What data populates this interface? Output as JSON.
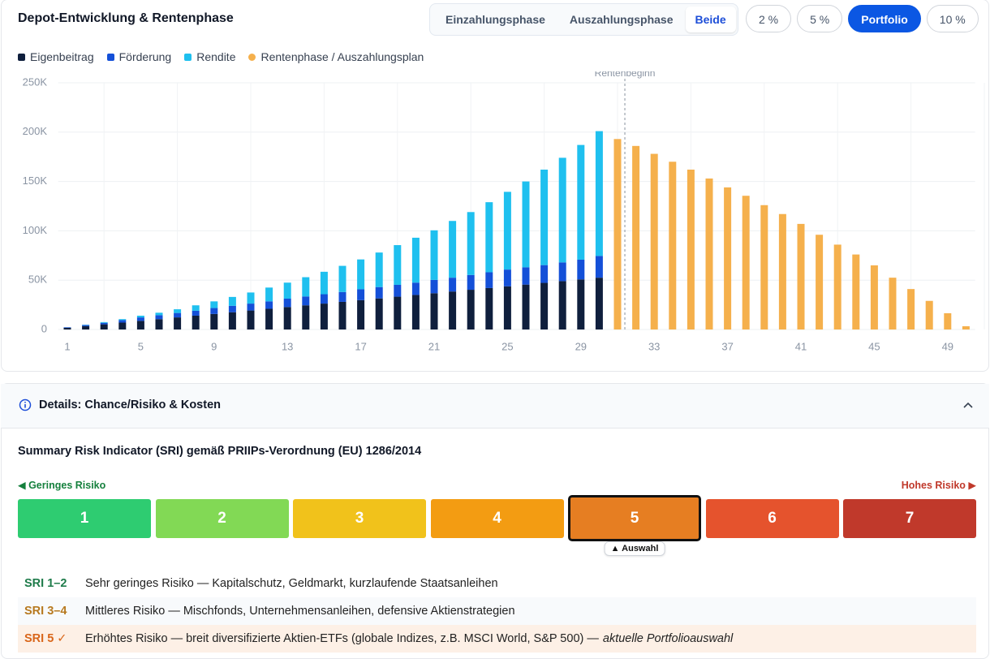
{
  "header": {
    "title": "Depot-Entwicklung & Rentenphase",
    "phases": [
      "Einzahlungsphase",
      "Auszahlungsphase",
      "Beide"
    ],
    "active_phase": 2,
    "rates": [
      "2 %",
      "5 %",
      "Portfolio",
      "10 %"
    ],
    "active_rate": 2
  },
  "chart_data": {
    "type": "bar",
    "stacked": true,
    "x": [
      1,
      2,
      3,
      4,
      5,
      6,
      7,
      8,
      9,
      10,
      11,
      12,
      13,
      14,
      15,
      16,
      17,
      18,
      19,
      20,
      21,
      22,
      23,
      24,
      25,
      26,
      27,
      28,
      29,
      30,
      31,
      32,
      33,
      34,
      35,
      36,
      37,
      38,
      39,
      40,
      41,
      42,
      43,
      44,
      45,
      46,
      47,
      48,
      49,
      50
    ],
    "xlim": [
      0.5,
      50.5
    ],
    "xticks": [
      1,
      5,
      9,
      13,
      17,
      21,
      25,
      29,
      33,
      37,
      41,
      45,
      49
    ],
    "ylim": [
      0,
      250000
    ],
    "yticks": [
      0,
      {
        "value": 50000,
        "label": "50K"
      },
      {
        "value": 100000,
        "label": "100K"
      },
      {
        "value": 150000,
        "label": "150K"
      },
      {
        "value": 200000,
        "label": "200K"
      },
      {
        "value": 250000,
        "label": "250K"
      }
    ],
    "grid": true,
    "annotation": {
      "text": "Rentenbeginn",
      "x": 31.4
    },
    "series": [
      {
        "name": "Eigenbeitrag",
        "color": "#0f1f3d",
        "marker": "square",
        "values": [
          1750,
          3500,
          5250,
          7000,
          8750,
          10500,
          12250,
          14000,
          15750,
          17500,
          19250,
          21000,
          22750,
          24500,
          26250,
          28000,
          29750,
          31500,
          33250,
          35000,
          36750,
          38500,
          40250,
          42000,
          43750,
          45500,
          47250,
          49000,
          50750,
          52500,
          null,
          null,
          null,
          null,
          null,
          null,
          null,
          null,
          null,
          null,
          null,
          null,
          null,
          null,
          null,
          null,
          null,
          null,
          null,
          null
        ]
      },
      {
        "name": "Förderung",
        "color": "#1450d8",
        "marker": "square",
        "values": [
          500,
          1000,
          1500,
          2500,
          3500,
          4000,
          4500,
          5000,
          6000,
          6500,
          7000,
          7500,
          8500,
          9000,
          9500,
          10000,
          11000,
          11500,
          12000,
          12500,
          13500,
          14000,
          15000,
          16000,
          17000,
          17500,
          18000,
          19000,
          20000,
          22000,
          null,
          null,
          null,
          null,
          null,
          null,
          null,
          null,
          null,
          null,
          null,
          null,
          null,
          null,
          null,
          null,
          null,
          null,
          null,
          null
        ]
      },
      {
        "name": "Rendite",
        "color": "#1fc0ef",
        "marker": "square",
        "values": [
          50,
          300,
          750,
          1000,
          1750,
          2500,
          3750,
          5500,
          6750,
          9000,
          11250,
          14000,
          16250,
          19500,
          22750,
          26500,
          30250,
          35000,
          40250,
          45500,
          50250,
          57500,
          63750,
          71000,
          78750,
          87000,
          96750,
          106000,
          116250,
          126500,
          null,
          null,
          null,
          null,
          null,
          null,
          null,
          null,
          null,
          null,
          null,
          null,
          null,
          null,
          null,
          null,
          null,
          null,
          null,
          null
        ]
      },
      {
        "name": "Rentenphase / Auszahlungsplan",
        "color": "#f5b04c",
        "marker": "circle",
        "values": [
          null,
          null,
          null,
          null,
          null,
          null,
          null,
          null,
          null,
          null,
          null,
          null,
          null,
          null,
          null,
          null,
          null,
          null,
          null,
          null,
          null,
          null,
          null,
          null,
          null,
          null,
          null,
          null,
          null,
          null,
          193000,
          186000,
          178000,
          170000,
          162000,
          153000,
          144000,
          135500,
          126000,
          117000,
          107000,
          96000,
          86000,
          76000,
          65000,
          52500,
          41000,
          29000,
          16500,
          3300
        ]
      }
    ]
  },
  "details": {
    "title": "Details: Chance/Risiko & Kosten",
    "sri_title": "Summary Risk Indicator (SRI) gemäß PRIIPs-Verordnung (EU) 1286/2014",
    "low_label": "◀ Geringes Risiko",
    "high_label": "Hohes Risiko ▶",
    "levels": [
      {
        "label": 1,
        "color": "#2ecc71"
      },
      {
        "label": 2,
        "color": "#82d955"
      },
      {
        "label": 3,
        "color": "#f1c21b"
      },
      {
        "label": 4,
        "color": "#f39c12"
      },
      {
        "label": 5,
        "color": "#e67e22"
      },
      {
        "label": 6,
        "color": "#e5532d"
      },
      {
        "label": 7,
        "color": "#c0392b"
      }
    ],
    "selected": 4,
    "selected_label": "▲ Auswahl",
    "rows": [
      {
        "label": "SRI 1–2",
        "color": "#1e7b4a",
        "text": "Sehr geringes Risiko — Kapitalschutz, Geldmarkt, kurzlaufende Staatsanleihen"
      },
      {
        "label": "SRI 3–4",
        "color": "#b7791f",
        "text": "Mittleres Risiko — Mischfonds, Unternehmensanleihen, defensive Aktienstrategien"
      },
      {
        "label": "SRI 5 ✓",
        "color": "#d9661a",
        "text": "Erhöhtes Risiko — breit diversifizierte Aktien-ETFs (globale Indizes, z.B. MSCI World, S&P 500) —",
        "note": "aktuelle Portfolioauswahl"
      }
    ]
  }
}
